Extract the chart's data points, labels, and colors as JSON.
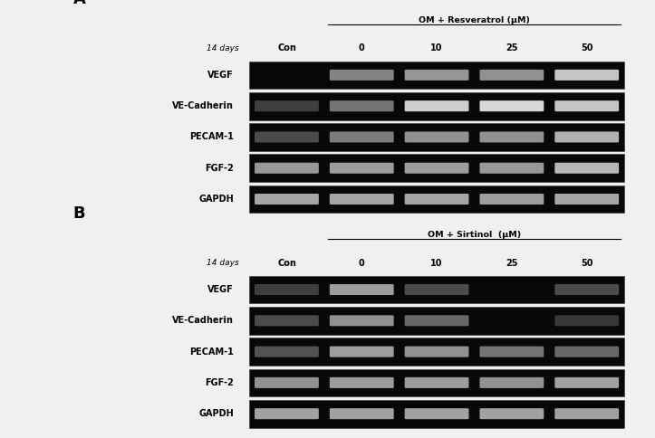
{
  "background_color": "#f0f0f0",
  "panel_A": {
    "label": "A",
    "title": "OM + Resveratrol (μM)",
    "days_label": "14 days",
    "col_labels": [
      "Con",
      "0",
      "10",
      "25",
      "50"
    ],
    "row_labels": [
      "VEGF",
      "VE-Cadherin",
      "PECAM-1",
      "FGF-2",
      "GAPDH"
    ],
    "gel_bg": "#080808",
    "bands": {
      "VEGF": [
        {
          "col": 0,
          "intensity": 0.0
        },
        {
          "col": 1,
          "intensity": 0.55
        },
        {
          "col": 2,
          "intensity": 0.65
        },
        {
          "col": 3,
          "intensity": 0.62
        },
        {
          "col": 4,
          "intensity": 0.88
        }
      ],
      "VE-Cadherin": [
        {
          "col": 0,
          "intensity": 0.22
        },
        {
          "col": 1,
          "intensity": 0.48
        },
        {
          "col": 2,
          "intensity": 0.92
        },
        {
          "col": 3,
          "intensity": 0.97
        },
        {
          "col": 4,
          "intensity": 0.88
        }
      ],
      "PECAM-1": [
        {
          "col": 0,
          "intensity": 0.28
        },
        {
          "col": 1,
          "intensity": 0.52
        },
        {
          "col": 2,
          "intensity": 0.62
        },
        {
          "col": 3,
          "intensity": 0.62
        },
        {
          "col": 4,
          "intensity": 0.78
        }
      ],
      "FGF-2": [
        {
          "col": 0,
          "intensity": 0.65
        },
        {
          "col": 1,
          "intensity": 0.68
        },
        {
          "col": 2,
          "intensity": 0.68
        },
        {
          "col": 3,
          "intensity": 0.65
        },
        {
          "col": 4,
          "intensity": 0.8
        }
      ],
      "GAPDH": [
        {
          "col": 0,
          "intensity": 0.72
        },
        {
          "col": 1,
          "intensity": 0.72
        },
        {
          "col": 2,
          "intensity": 0.72
        },
        {
          "col": 3,
          "intensity": 0.68
        },
        {
          "col": 4,
          "intensity": 0.72
        }
      ]
    }
  },
  "panel_B": {
    "label": "B",
    "title": "OM + Sirtinol  (μM)",
    "days_label": "14 days",
    "col_labels": [
      "Con",
      "0",
      "10",
      "25",
      "50"
    ],
    "row_labels": [
      "VEGF",
      "VE-Cadherin",
      "PECAM-1",
      "FGF-2",
      "GAPDH"
    ],
    "gel_bg": "#080808",
    "bands": {
      "VEGF": [
        {
          "col": 0,
          "intensity": 0.22
        },
        {
          "col": 1,
          "intensity": 0.68
        },
        {
          "col": 2,
          "intensity": 0.28
        },
        {
          "col": 3,
          "intensity": 0.0
        },
        {
          "col": 4,
          "intensity": 0.28
        }
      ],
      "VE-Cadherin": [
        {
          "col": 0,
          "intensity": 0.28
        },
        {
          "col": 1,
          "intensity": 0.62
        },
        {
          "col": 2,
          "intensity": 0.42
        },
        {
          "col": 3,
          "intensity": 0.0
        },
        {
          "col": 4,
          "intensity": 0.18
        }
      ],
      "PECAM-1": [
        {
          "col": 0,
          "intensity": 0.32
        },
        {
          "col": 1,
          "intensity": 0.68
        },
        {
          "col": 2,
          "intensity": 0.62
        },
        {
          "col": 3,
          "intensity": 0.48
        },
        {
          "col": 4,
          "intensity": 0.42
        }
      ],
      "FGF-2": [
        {
          "col": 0,
          "intensity": 0.62
        },
        {
          "col": 1,
          "intensity": 0.68
        },
        {
          "col": 2,
          "intensity": 0.68
        },
        {
          "col": 3,
          "intensity": 0.62
        },
        {
          "col": 4,
          "intensity": 0.7
        }
      ],
      "GAPDH": [
        {
          "col": 0,
          "intensity": 0.7
        },
        {
          "col": 1,
          "intensity": 0.7
        },
        {
          "col": 2,
          "intensity": 0.7
        },
        {
          "col": 3,
          "intensity": 0.7
        },
        {
          "col": 4,
          "intensity": 0.7
        }
      ]
    }
  }
}
